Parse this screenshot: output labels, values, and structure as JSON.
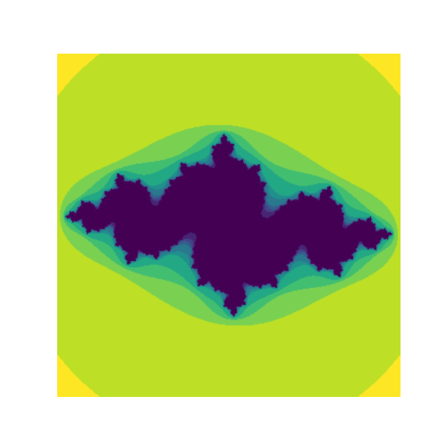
{
  "figure": {
    "title": "",
    "subject": "julia-set",
    "colormap": "viridis",
    "axes_visible": false
  },
  "render": {
    "c_real": -0.8,
    "c_imag": 0.156,
    "x_range": [
      -1.6,
      1.6
    ],
    "y_range": [
      -1.6,
      1.6
    ],
    "max_iter": 14,
    "escape_radius": 2.0
  },
  "colors": {
    "viridis": [
      "#440154",
      "#482475",
      "#414487",
      "#355f8d",
      "#2a788e",
      "#21908d",
      "#22a884",
      "#42be71",
      "#7ad151",
      "#bddf26",
      "#fde725"
    ],
    "exterior": "#fde725",
    "interior": "#440154"
  }
}
